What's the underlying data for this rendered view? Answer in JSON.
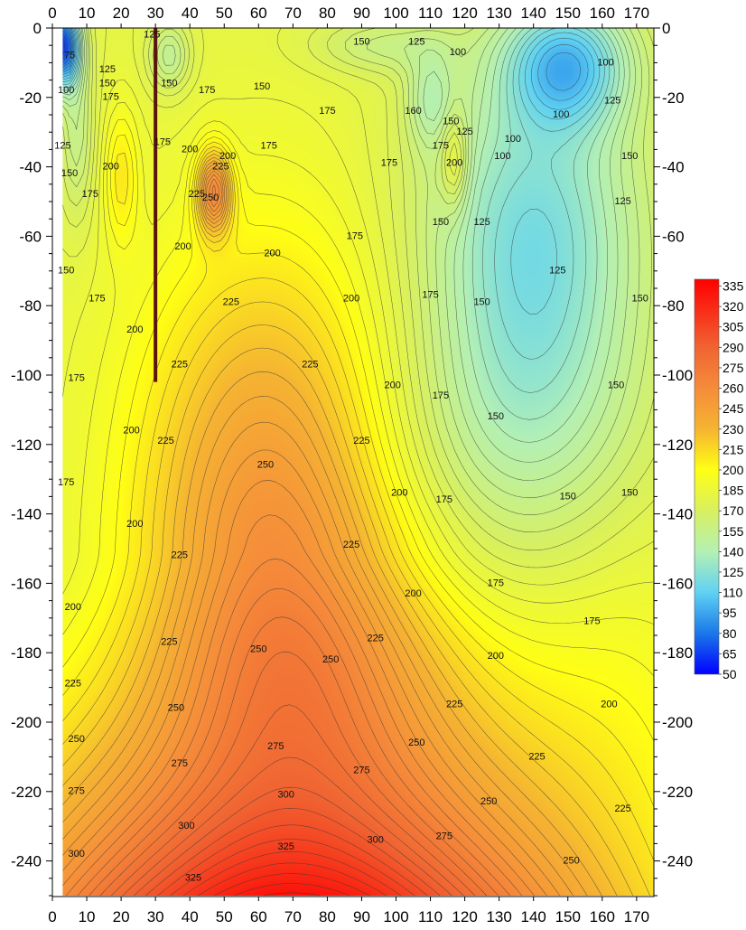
{
  "chart_data": {
    "type": "heatmap",
    "title": "",
    "xlabel": "",
    "ylabel": "",
    "xlim": [
      0,
      175
    ],
    "ylim": [
      -250,
      0
    ],
    "x_ticks": [
      0,
      10,
      20,
      30,
      40,
      50,
      60,
      70,
      80,
      90,
      100,
      110,
      120,
      130,
      140,
      150,
      160,
      170
    ],
    "x_tick_labels": [
      "0",
      "10",
      "20",
      "30",
      "40",
      "50",
      "60",
      "70",
      "80",
      "90",
      "100",
      "110",
      "120",
      "130",
      "140",
      "150",
      "160",
      "170"
    ],
    "y_ticks": [
      0,
      -20,
      -40,
      -60,
      -80,
      -100,
      -120,
      -140,
      -160,
      -180,
      -200,
      -220,
      -240
    ],
    "y_tick_labels": [
      "0",
      "-20",
      "-40",
      "-60",
      "-80",
      "-100",
      "-120",
      "-140",
      "-160",
      "-180",
      "-200",
      "-220",
      "-240"
    ],
    "data_extent_x": [
      3,
      175
    ],
    "data_extent_y": [
      -250,
      0
    ],
    "colorbar": {
      "min": 50,
      "max": 340,
      "step": 15,
      "labels": [
        "335",
        "320",
        "305",
        "290",
        "275",
        "260",
        "245",
        "230",
        "215",
        "200",
        "185",
        "170",
        "155",
        "140",
        "125",
        "110",
        "95",
        "80",
        "65",
        "50"
      ],
      "stops": [
        {
          "value": 50,
          "color": "#0000ff"
        },
        {
          "value": 80,
          "color": "#1a78e8"
        },
        {
          "value": 110,
          "color": "#5fd2f2"
        },
        {
          "value": 140,
          "color": "#b4f0b4"
        },
        {
          "value": 170,
          "color": "#d8f060"
        },
        {
          "value": 200,
          "color": "#ffff14"
        },
        {
          "value": 230,
          "color": "#f5b432"
        },
        {
          "value": 260,
          "color": "#f58c3a"
        },
        {
          "value": 290,
          "color": "#f06432"
        },
        {
          "value": 340,
          "color": "#ff0000"
        }
      ]
    },
    "contour_interval": 5,
    "well_line": {
      "x": 30,
      "y_top": 0,
      "y_bottom": -102,
      "color": "#5a1410"
    },
    "contour_labels": [
      {
        "text": "75",
        "x": 5,
        "y": -8
      },
      {
        "text": "100",
        "x": 4,
        "y": -18
      },
      {
        "text": "125",
        "x": 16,
        "y": -12
      },
      {
        "text": "150",
        "x": 16,
        "y": -16
      },
      {
        "text": "175",
        "x": 17,
        "y": -20
      },
      {
        "text": "125",
        "x": 3,
        "y": -34
      },
      {
        "text": "150",
        "x": 5,
        "y": -42
      },
      {
        "text": "175",
        "x": 11,
        "y": -48
      },
      {
        "text": "200",
        "x": 17,
        "y": -40
      },
      {
        "text": "150",
        "x": 4,
        "y": -70
      },
      {
        "text": "175",
        "x": 13,
        "y": -78
      },
      {
        "text": "200",
        "x": 24,
        "y": -87
      },
      {
        "text": "175",
        "x": 7,
        "y": -101
      },
      {
        "text": "200",
        "x": 23,
        "y": -116
      },
      {
        "text": "175",
        "x": 4,
        "y": -131
      },
      {
        "text": "200",
        "x": 24,
        "y": -143
      },
      {
        "text": "200",
        "x": 6,
        "y": -167
      },
      {
        "text": "225",
        "x": 6,
        "y": -189
      },
      {
        "text": "250",
        "x": 7,
        "y": -205
      },
      {
        "text": "275",
        "x": 7,
        "y": -220
      },
      {
        "text": "300",
        "x": 7,
        "y": -238
      },
      {
        "text": "125",
        "x": 29,
        "y": -2
      },
      {
        "text": "150",
        "x": 34,
        "y": -16
      },
      {
        "text": "175",
        "x": 32,
        "y": -33
      },
      {
        "text": "175",
        "x": 45,
        "y": -18
      },
      {
        "text": "200",
        "x": 40,
        "y": -35
      },
      {
        "text": "200",
        "x": 51,
        "y": -37
      },
      {
        "text": "225",
        "x": 49,
        "y": -40
      },
      {
        "text": "225",
        "x": 42,
        "y": -48
      },
      {
        "text": "250",
        "x": 46,
        "y": -49
      },
      {
        "text": "200",
        "x": 38,
        "y": -63
      },
      {
        "text": "150",
        "x": 61,
        "y": -17
      },
      {
        "text": "175",
        "x": 63,
        "y": -34
      },
      {
        "text": "200",
        "x": 64,
        "y": -65
      },
      {
        "text": "175",
        "x": 80,
        "y": -24
      },
      {
        "text": "225",
        "x": 52,
        "y": -79
      },
      {
        "text": "225",
        "x": 37,
        "y": -97
      },
      {
        "text": "225",
        "x": 33,
        "y": -119
      },
      {
        "text": "225",
        "x": 37,
        "y": -152
      },
      {
        "text": "225",
        "x": 34,
        "y": -177
      },
      {
        "text": "250",
        "x": 36,
        "y": -196
      },
      {
        "text": "275",
        "x": 37,
        "y": -212
      },
      {
        "text": "300",
        "x": 39,
        "y": -230
      },
      {
        "text": "325",
        "x": 41,
        "y": -245
      },
      {
        "text": "250",
        "x": 62,
        "y": -126
      },
      {
        "text": "250",
        "x": 60,
        "y": -179
      },
      {
        "text": "275",
        "x": 65,
        "y": -207
      },
      {
        "text": "300",
        "x": 68,
        "y": -221
      },
      {
        "text": "325",
        "x": 68,
        "y": -236
      },
      {
        "text": "225",
        "x": 75,
        "y": -97
      },
      {
        "text": "225",
        "x": 90,
        "y": -119
      },
      {
        "text": "225",
        "x": 87,
        "y": -149
      },
      {
        "text": "250",
        "x": 81,
        "y": -182
      },
      {
        "text": "275",
        "x": 90,
        "y": -214
      },
      {
        "text": "300",
        "x": 94,
        "y": -234
      },
      {
        "text": "225",
        "x": 94,
        "y": -176
      },
      {
        "text": "250",
        "x": 106,
        "y": -206
      },
      {
        "text": "275",
        "x": 114,
        "y": -233
      },
      {
        "text": "200",
        "x": 87,
        "y": -78
      },
      {
        "text": "200",
        "x": 99,
        "y": -103
      },
      {
        "text": "200",
        "x": 101,
        "y": -134
      },
      {
        "text": "200",
        "x": 105,
        "y": -163
      },
      {
        "text": "225",
        "x": 117,
        "y": -195
      },
      {
        "text": "250",
        "x": 127,
        "y": -223
      },
      {
        "text": "150",
        "x": 90,
        "y": -4
      },
      {
        "text": "125",
        "x": 106,
        "y": -4
      },
      {
        "text": "160",
        "x": 105,
        "y": -24
      },
      {
        "text": "175",
        "x": 98,
        "y": -39
      },
      {
        "text": "175",
        "x": 88,
        "y": -60
      },
      {
        "text": "175",
        "x": 110,
        "y": -77
      },
      {
        "text": "175",
        "x": 113,
        "y": -106
      },
      {
        "text": "175",
        "x": 114,
        "y": -136
      },
      {
        "text": "100",
        "x": 118,
        "y": -7
      },
      {
        "text": "150",
        "x": 116,
        "y": -27
      },
      {
        "text": "175",
        "x": 113,
        "y": -34
      },
      {
        "text": "200",
        "x": 117,
        "y": -39
      },
      {
        "text": "125",
        "x": 120,
        "y": -30
      },
      {
        "text": "150",
        "x": 113,
        "y": -56
      },
      {
        "text": "125",
        "x": 125,
        "y": -56
      },
      {
        "text": "150",
        "x": 125,
        "y": -79
      },
      {
        "text": "150",
        "x": 129,
        "y": -112
      },
      {
        "text": "100",
        "x": 131,
        "y": -37
      },
      {
        "text": "100",
        "x": 134,
        "y": -32
      },
      {
        "text": "100",
        "x": 148,
        "y": -25
      },
      {
        "text": "100",
        "x": 161,
        "y": -10
      },
      {
        "text": "125",
        "x": 163,
        "y": -21
      },
      {
        "text": "125",
        "x": 147,
        "y": -70
      },
      {
        "text": "150",
        "x": 168,
        "y": -37
      },
      {
        "text": "125",
        "x": 166,
        "y": -50
      },
      {
        "text": "150",
        "x": 171,
        "y": -78
      },
      {
        "text": "150",
        "x": 164,
        "y": -103
      },
      {
        "text": "150",
        "x": 150,
        "y": -135
      },
      {
        "text": "150",
        "x": 168,
        "y": -134
      },
      {
        "text": "175",
        "x": 129,
        "y": -160
      },
      {
        "text": "175",
        "x": 157,
        "y": -171
      },
      {
        "text": "200",
        "x": 129,
        "y": -181
      },
      {
        "text": "200",
        "x": 162,
        "y": -195
      },
      {
        "text": "225",
        "x": 141,
        "y": -210
      },
      {
        "text": "225",
        "x": 166,
        "y": -225
      },
      {
        "text": "250",
        "x": 151,
        "y": -240
      }
    ]
  }
}
